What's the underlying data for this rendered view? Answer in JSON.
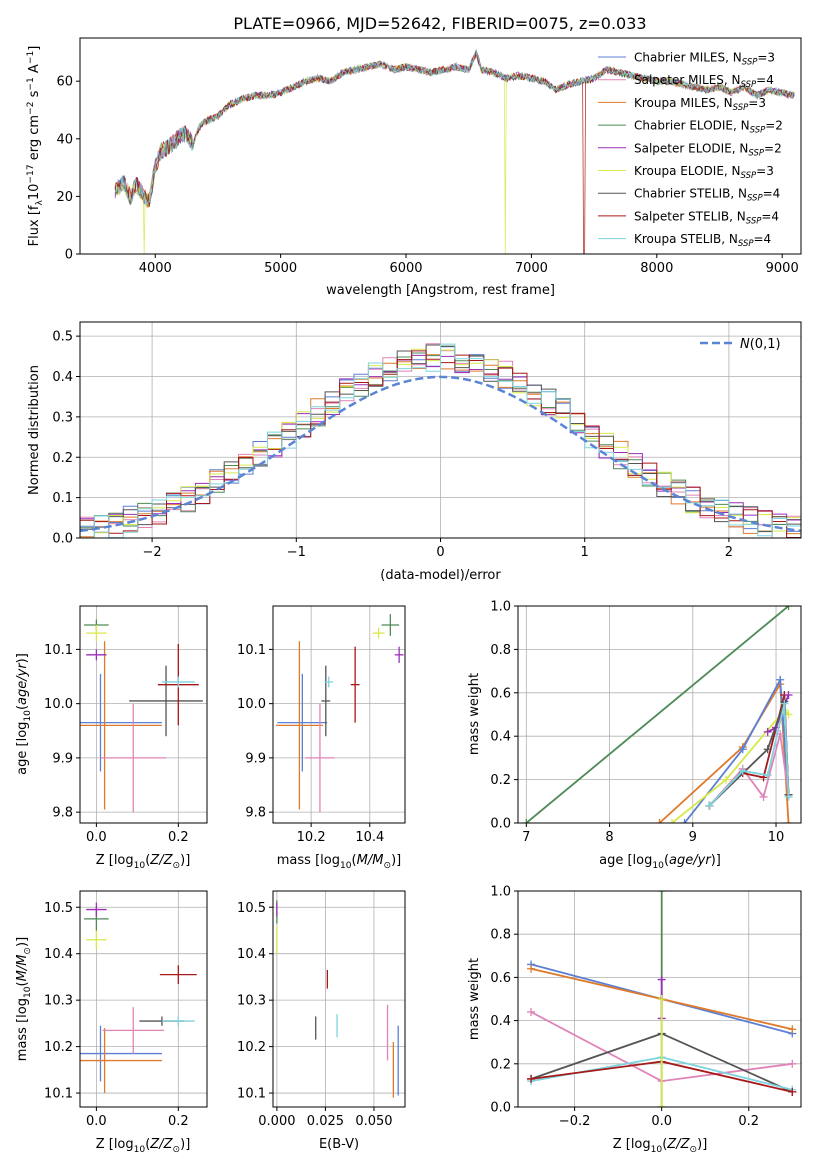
{
  "title": "PLATE=0966, MJD=52642, FIBERID=0075, z=0.033",
  "colors": {
    "Chabrier MILES": "#5b7fd4",
    "Salpeter MILES": "#e183b8",
    "Kroupa MILES": "#df7a2a",
    "Chabrier ELODIE": "#4f8a55",
    "Salpeter ELODIE": "#9b2fb8",
    "Kroupa ELODIE": "#d8e84a",
    "Chabrier STELIB": "#555555",
    "Salpeter STELIB": "#a71818",
    "Kroupa STELIB": "#7dd3de"
  },
  "chart_data": [
    {
      "id": "spectrum",
      "type": "line",
      "xlabel": "wavelength [Angstrom, rest frame]",
      "ylabel": "Flux [f_λ 10^-17 erg cm^-2 s^-1 A^-1]",
      "xlim": [
        3400,
        9150
      ],
      "ylim": [
        0,
        75
      ],
      "xticks": [
        4000,
        5000,
        6000,
        7000,
        8000,
        9000
      ],
      "yticks": [
        0,
        20,
        40,
        60
      ],
      "legend_position": "top-right",
      "legend": [
        {
          "name": "Chabrier MILES",
          "nssp": "=3"
        },
        {
          "name": "Salpeter MILES",
          "nssp": "=4"
        },
        {
          "name": "Kroupa MILES",
          "nssp": "=3"
        },
        {
          "name": "Chabrier ELODIE",
          "nssp": "=2"
        },
        {
          "name": "Salpeter ELODIE",
          "nssp": "=2"
        },
        {
          "name": "Kroupa ELODIE",
          "nssp": "=3"
        },
        {
          "name": "Chabrier STELIB",
          "nssp": "=4"
        },
        {
          "name": "Salpeter STELIB",
          "nssp": "=4"
        },
        {
          "name": "Kroupa STELIB",
          "nssp": "=4"
        }
      ],
      "spectrum_x": [
        3680,
        3750,
        3800,
        3850,
        3900,
        3950,
        4000,
        4050,
        4100,
        4150,
        4200,
        4250,
        4300,
        4350,
        4400,
        4500,
        4600,
        4700,
        4800,
        4900,
        5000,
        5100,
        5200,
        5300,
        5400,
        5500,
        5600,
        5700,
        5800,
        5900,
        6000,
        6100,
        6200,
        6300,
        6400,
        6500,
        6560,
        6600,
        6700,
        6800,
        6900,
        7000,
        7100,
        7200,
        7300,
        7400,
        7500,
        7600,
        7700,
        7800,
        7900,
        8000,
        8100,
        8200,
        8300,
        8400,
        8500,
        8600,
        8700,
        8800,
        8900,
        9000,
        9100
      ],
      "spectrum_y": [
        22,
        25,
        20,
        24,
        21,
        18,
        30,
        36,
        37,
        39,
        41,
        42,
        38,
        44,
        46,
        48,
        52,
        54,
        55,
        55,
        56,
        58,
        60,
        61,
        60,
        63,
        64,
        65,
        66,
        64,
        65,
        64,
        63,
        64,
        65,
        64,
        70,
        64,
        63,
        61,
        62,
        61,
        60,
        57,
        59,
        60,
        61,
        64,
        63,
        62,
        61,
        60,
        60,
        59,
        58,
        57,
        58,
        56,
        58,
        55,
        57,
        56,
        55
      ],
      "dropouts": [
        {
          "x": 3910,
          "series": "Kroupa ELODIE"
        },
        {
          "x": 6790,
          "series": "Kroupa ELODIE"
        },
        {
          "x": 7420,
          "series": "Salpeter STELIB"
        }
      ]
    },
    {
      "id": "residuals",
      "type": "histogram",
      "xlabel": "(data-model)/error",
      "ylabel": "Normed distribution",
      "xlim": [
        -2.5,
        2.5
      ],
      "ylim": [
        0,
        0.535
      ],
      "xticks": [
        -2,
        -1,
        0,
        1,
        2
      ],
      "yticks": [
        0.0,
        0.1,
        0.2,
        0.3,
        0.4,
        0.5
      ],
      "grid": true,
      "legend_position": "top-right",
      "reference_curve": "N(0,1)",
      "bin_width": 0.1
    },
    {
      "id": "age-vs-Z",
      "type": "scatter",
      "xlabel": "Z [log10(Z/Z⊙)]",
      "ylabel": "age [log10(age/yr)]",
      "xlim": [
        -0.04,
        0.27
      ],
      "ylim": [
        9.78,
        10.18
      ],
      "xticks": [
        0.0,
        0.2
      ],
      "yticks": [
        9.8,
        9.9,
        10.0,
        10.1
      ],
      "grid": true,
      "points": [
        {
          "series": "Chabrier MILES",
          "x": 0.01,
          "xerr": 0.15,
          "y": 9.965,
          "yerr": 0.09
        },
        {
          "series": "Kroupa MILES",
          "x": 0.02,
          "xerr": 0.14,
          "y": 9.96,
          "yerr": 0.155
        },
        {
          "series": "Salpeter MILES",
          "x": 0.09,
          "xerr": 0.08,
          "y": 9.9,
          "yerr": 0.1
        },
        {
          "series": "Chabrier ELODIE",
          "x": 0.0,
          "xerr": 0.03,
          "y": 10.145,
          "yerr": 0.01
        },
        {
          "series": "Kroupa ELODIE",
          "x": 0.0,
          "xerr": 0.025,
          "y": 10.13,
          "yerr": 0.015
        },
        {
          "series": "Salpeter ELODIE",
          "x": 0.0,
          "xerr": 0.025,
          "y": 10.09,
          "yerr": 0.01
        },
        {
          "series": "Chabrier STELIB",
          "x": 0.17,
          "xerr": 0.09,
          "y": 10.005,
          "yerr": 0.065
        },
        {
          "series": "Salpeter STELIB",
          "x": 0.2,
          "xerr": 0.05,
          "y": 10.035,
          "yerr": 0.075
        },
        {
          "series": "Kroupa STELIB",
          "x": 0.2,
          "xerr": 0.04,
          "y": 10.04,
          "yerr": 0.01
        }
      ]
    },
    {
      "id": "age-vs-mass",
      "type": "scatter",
      "xlabel": "mass [log10(M/M⊙)]",
      "xlim": [
        10.07,
        10.52
      ],
      "ylim": [
        9.78,
        10.18
      ],
      "xticks": [
        10.2,
        10.4
      ],
      "yticks": [
        9.8,
        9.9,
        10.0,
        10.1
      ],
      "grid": true,
      "points": [
        {
          "series": "Chabrier MILES",
          "x": 10.17,
          "xerr": 0.085,
          "y": 9.965,
          "yerr": 0.09
        },
        {
          "series": "Kroupa MILES",
          "x": 10.16,
          "xerr": 0.08,
          "y": 9.96,
          "yerr": 0.155
        },
        {
          "series": "Salpeter MILES",
          "x": 10.23,
          "xerr": 0.05,
          "y": 9.9,
          "yerr": 0.1
        },
        {
          "series": "Chabrier ELODIE",
          "x": 10.47,
          "xerr": 0.03,
          "y": 10.145,
          "yerr": 0.02
        },
        {
          "series": "Kroupa ELODIE",
          "x": 10.43,
          "xerr": 0.02,
          "y": 10.13,
          "yerr": 0.01
        },
        {
          "series": "Salpeter ELODIE",
          "x": 10.5,
          "xerr": 0.015,
          "y": 10.09,
          "yerr": 0.015
        },
        {
          "series": "Chabrier STELIB",
          "x": 10.25,
          "xerr": 0.015,
          "y": 10.005,
          "yerr": 0.065
        },
        {
          "series": "Salpeter STELIB",
          "x": 10.35,
          "xerr": 0.015,
          "y": 10.035,
          "yerr": 0.07
        },
        {
          "series": "Kroupa STELIB",
          "x": 10.26,
          "xerr": 0.015,
          "y": 10.04,
          "yerr": 0.01
        }
      ]
    },
    {
      "id": "weight-vs-age",
      "type": "line",
      "xlabel": "age [log10(age/yr)]",
      "ylabel": "mass weight",
      "xlim": [
        6.9,
        10.3
      ],
      "ylim": [
        0,
        1.0
      ],
      "xticks": [
        7,
        8,
        9,
        10
      ],
      "yticks": [
        0.0,
        0.2,
        0.4,
        0.6,
        0.8,
        1.0
      ],
      "grid": true,
      "series": [
        {
          "name": "Chabrier ELODIE",
          "x": [
            7.0,
            10.15
          ],
          "y": [
            0.0,
            1.0
          ]
        },
        {
          "name": "Kroupa MILES",
          "x": [
            8.6,
            9.6,
            10.05,
            10.15
          ],
          "y": [
            0.0,
            0.35,
            0.64,
            0.0
          ]
        },
        {
          "name": "Chabrier MILES",
          "x": [
            8.9,
            9.6,
            10.05,
            10.15
          ],
          "y": [
            0.0,
            0.34,
            0.66,
            0.13
          ]
        },
        {
          "name": "Kroupa ELODIE",
          "x": [
            8.75,
            9.4,
            10.1,
            10.15
          ],
          "y": [
            0.0,
            0.2,
            0.52,
            0.5
          ]
        },
        {
          "name": "Salpeter MILES",
          "x": [
            9.2,
            9.6,
            9.85,
            10.05,
            10.15
          ],
          "y": [
            0.08,
            0.25,
            0.12,
            0.41,
            0.13
          ]
        },
        {
          "name": "Salpeter STELIB",
          "x": [
            9.2,
            9.6,
            9.85,
            10.1,
            10.15
          ],
          "y": [
            0.08,
            0.23,
            0.21,
            0.59,
            0.13
          ]
        },
        {
          "name": "Salpeter ELODIE",
          "x": [
            9.9,
            10.0,
            10.15
          ],
          "y": [
            0.42,
            0.44,
            0.59
          ]
        },
        {
          "name": "Chabrier STELIB",
          "x": [
            9.2,
            9.9,
            10.1,
            10.15
          ],
          "y": [
            0.08,
            0.34,
            0.56,
            0.13
          ]
        },
        {
          "name": "Kroupa STELIB",
          "x": [
            9.2,
            9.6,
            9.9,
            10.1,
            10.15
          ],
          "y": [
            0.08,
            0.24,
            0.22,
            0.55,
            0.12
          ]
        }
      ]
    },
    {
      "id": "mass-vs-Z",
      "type": "scatter",
      "xlabel": "Z [log10(Z/Z⊙)]",
      "ylabel": "mass [log10(M/M⊙)]",
      "xlim": [
        -0.04,
        0.27
      ],
      "ylim": [
        10.07,
        10.535
      ],
      "xticks": [
        0.0,
        0.2
      ],
      "yticks": [
        10.1,
        10.2,
        10.3,
        10.4,
        10.5
      ],
      "grid": true,
      "points": [
        {
          "series": "Chabrier MILES",
          "x": 0.01,
          "xerr": 0.15,
          "y": 10.185,
          "yerr": 0.06
        },
        {
          "series": "Kroupa MILES",
          "x": 0.02,
          "xerr": 0.14,
          "y": 10.17,
          "yerr": 0.07
        },
        {
          "series": "Salpeter MILES",
          "x": 0.09,
          "xerr": 0.075,
          "y": 10.235,
          "yerr": 0.05
        },
        {
          "series": "Chabrier ELODIE",
          "x": 0.0,
          "xerr": 0.03,
          "y": 10.475,
          "yerr": 0.025
        },
        {
          "series": "Kroupa ELODIE",
          "x": 0.0,
          "xerr": 0.025,
          "y": 10.43,
          "yerr": 0.02
        },
        {
          "series": "Salpeter ELODIE",
          "x": 0.0,
          "xerr": 0.025,
          "y": 10.495,
          "yerr": 0.015
        },
        {
          "series": "Chabrier STELIB",
          "x": 0.16,
          "xerr": 0.055,
          "y": 10.255,
          "yerr": 0.01
        },
        {
          "series": "Salpeter STELIB",
          "x": 0.2,
          "xerr": 0.045,
          "y": 10.355,
          "yerr": 0.02
        },
        {
          "series": "Kroupa STELIB",
          "x": 0.2,
          "xerr": 0.04,
          "y": 10.255,
          "yerr": 0.01
        }
      ]
    },
    {
      "id": "mass-vs-ebv",
      "type": "scatter",
      "xlabel": "E(B-V)",
      "xlim": [
        -0.002,
        0.066
      ],
      "ylim": [
        10.07,
        10.535
      ],
      "xticks": [
        0.0,
        0.025,
        0.05
      ],
      "xticklabels": [
        "0.000",
        "0.025",
        "0.050"
      ],
      "yticks": [
        10.1,
        10.2,
        10.3,
        10.4,
        10.5
      ],
      "grid": true,
      "points": [
        {
          "series": "Chabrier MILES",
          "x": 0.0625,
          "y": 10.17,
          "yerr": 0.075
        },
        {
          "series": "Kroupa MILES",
          "x": 0.06,
          "y": 10.15,
          "yerr": 0.06
        },
        {
          "series": "Salpeter MILES",
          "x": 0.057,
          "y": 10.23,
          "yerr": 0.06
        },
        {
          "series": "Chabrier ELODIE",
          "x": 0.0,
          "y": 10.49,
          "yerr": 0.025
        },
        {
          "series": "Kroupa ELODIE",
          "x": 0.0,
          "y": 10.43,
          "yerr": 0.03
        },
        {
          "series": "Salpeter ELODIE",
          "x": 0.0,
          "y": 10.495,
          "yerr": 0.015
        },
        {
          "series": "Chabrier STELIB",
          "x": 0.02,
          "y": 10.24,
          "yerr": 0.025
        },
        {
          "series": "Salpeter STELIB",
          "x": 0.026,
          "y": 10.345,
          "yerr": 0.02
        },
        {
          "series": "Kroupa STELIB",
          "x": 0.031,
          "y": 10.245,
          "yerr": 0.025
        }
      ]
    },
    {
      "id": "weight-vs-Z",
      "type": "line",
      "xlabel": "Z [log10(Z/Z⊙)]",
      "ylabel": "mass weight",
      "xlim": [
        -0.33,
        0.32
      ],
      "ylim": [
        0,
        1.0
      ],
      "xticks": [
        -0.2,
        0.0,
        0.2
      ],
      "xticklabels": [
        "−0.2",
        "0.0",
        "0.2"
      ],
      "yticks": [
        0.0,
        0.2,
        0.4,
        0.6,
        0.8,
        1.0
      ],
      "grid": true,
      "series": [
        {
          "name": "Chabrier MILES",
          "x": [
            -0.3,
            0.0,
            0.3
          ],
          "y": [
            0.66,
            0.5,
            0.34
          ]
        },
        {
          "name": "Kroupa MILES",
          "x": [
            -0.3,
            0.0,
            0.3
          ],
          "y": [
            0.64,
            0.5,
            0.36
          ]
        },
        {
          "name": "Salpeter MILES",
          "x": [
            -0.3,
            0.0,
            0.3
          ],
          "y": [
            0.44,
            0.12,
            0.2
          ]
        },
        {
          "name": "Chabrier STELIB",
          "x": [
            -0.3,
            0.0,
            0.3
          ],
          "y": [
            0.13,
            0.34,
            0.07
          ]
        },
        {
          "name": "Kroupa STELIB",
          "x": [
            -0.3,
            0.0,
            0.3
          ],
          "y": [
            0.12,
            0.23,
            0.08
          ]
        },
        {
          "name": "Salpeter STELIB",
          "x": [
            -0.3,
            0.0,
            0.3
          ],
          "y": [
            0.13,
            0.21,
            0.07
          ]
        },
        {
          "name": "Chabrier ELODIE",
          "x": [
            0.0,
            0.0
          ],
          "y": [
            0.0,
            1.0
          ]
        },
        {
          "name": "Salpeter ELODIE",
          "x": [
            0.0,
            0.0
          ],
          "y": [
            0.41,
            0.59
          ]
        },
        {
          "name": "Kroupa ELODIE",
          "x": [
            0.0,
            0.0
          ],
          "y": [
            0.0,
            0.5
          ]
        }
      ]
    }
  ]
}
